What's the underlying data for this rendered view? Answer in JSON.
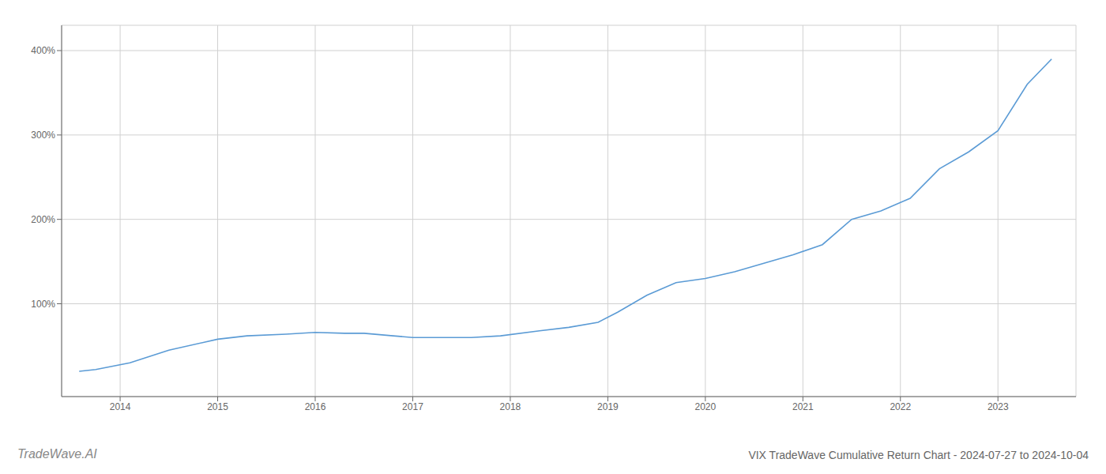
{
  "chart_data": {
    "type": "line",
    "title": "VIX TradeWave Cumulative Return Chart - 2024-07-27 to 2024-10-04",
    "annotations": [
      "TradeWave.AI"
    ],
    "color": "#5b9bd5",
    "x": [
      2013.58,
      2013.75,
      2014.1,
      2014.5,
      2015.0,
      2015.3,
      2015.7,
      2016.0,
      2016.3,
      2016.5,
      2016.8,
      2017.0,
      2017.3,
      2017.6,
      2017.9,
      2018.3,
      2018.6,
      2018.9,
      2019.1,
      2019.4,
      2019.7,
      2020.0,
      2020.3,
      2020.6,
      2020.9,
      2021.2,
      2021.5,
      2021.8,
      2022.1,
      2022.4,
      2022.7,
      2023.0,
      2023.3,
      2023.55
    ],
    "values": [
      20,
      22,
      30,
      45,
      58,
      62,
      64,
      66,
      65,
      65,
      62,
      60,
      60,
      60,
      62,
      68,
      72,
      78,
      90,
      110,
      125,
      130,
      138,
      148,
      158,
      170,
      200,
      210,
      225,
      260,
      280,
      305,
      360,
      390
    ],
    "xlim": [
      2013.4,
      2023.8
    ],
    "xticks": [
      2014,
      2015,
      2016,
      2017,
      2018,
      2019,
      2020,
      2021,
      2022,
      2023
    ],
    "ylim": [
      -10,
      430
    ],
    "yticks": [
      {
        "value": 100,
        "label": "100%"
      },
      {
        "value": 200,
        "label": "200%"
      },
      {
        "value": 300,
        "label": "300%"
      },
      {
        "value": 400,
        "label": "400%"
      }
    ],
    "grid": true
  }
}
